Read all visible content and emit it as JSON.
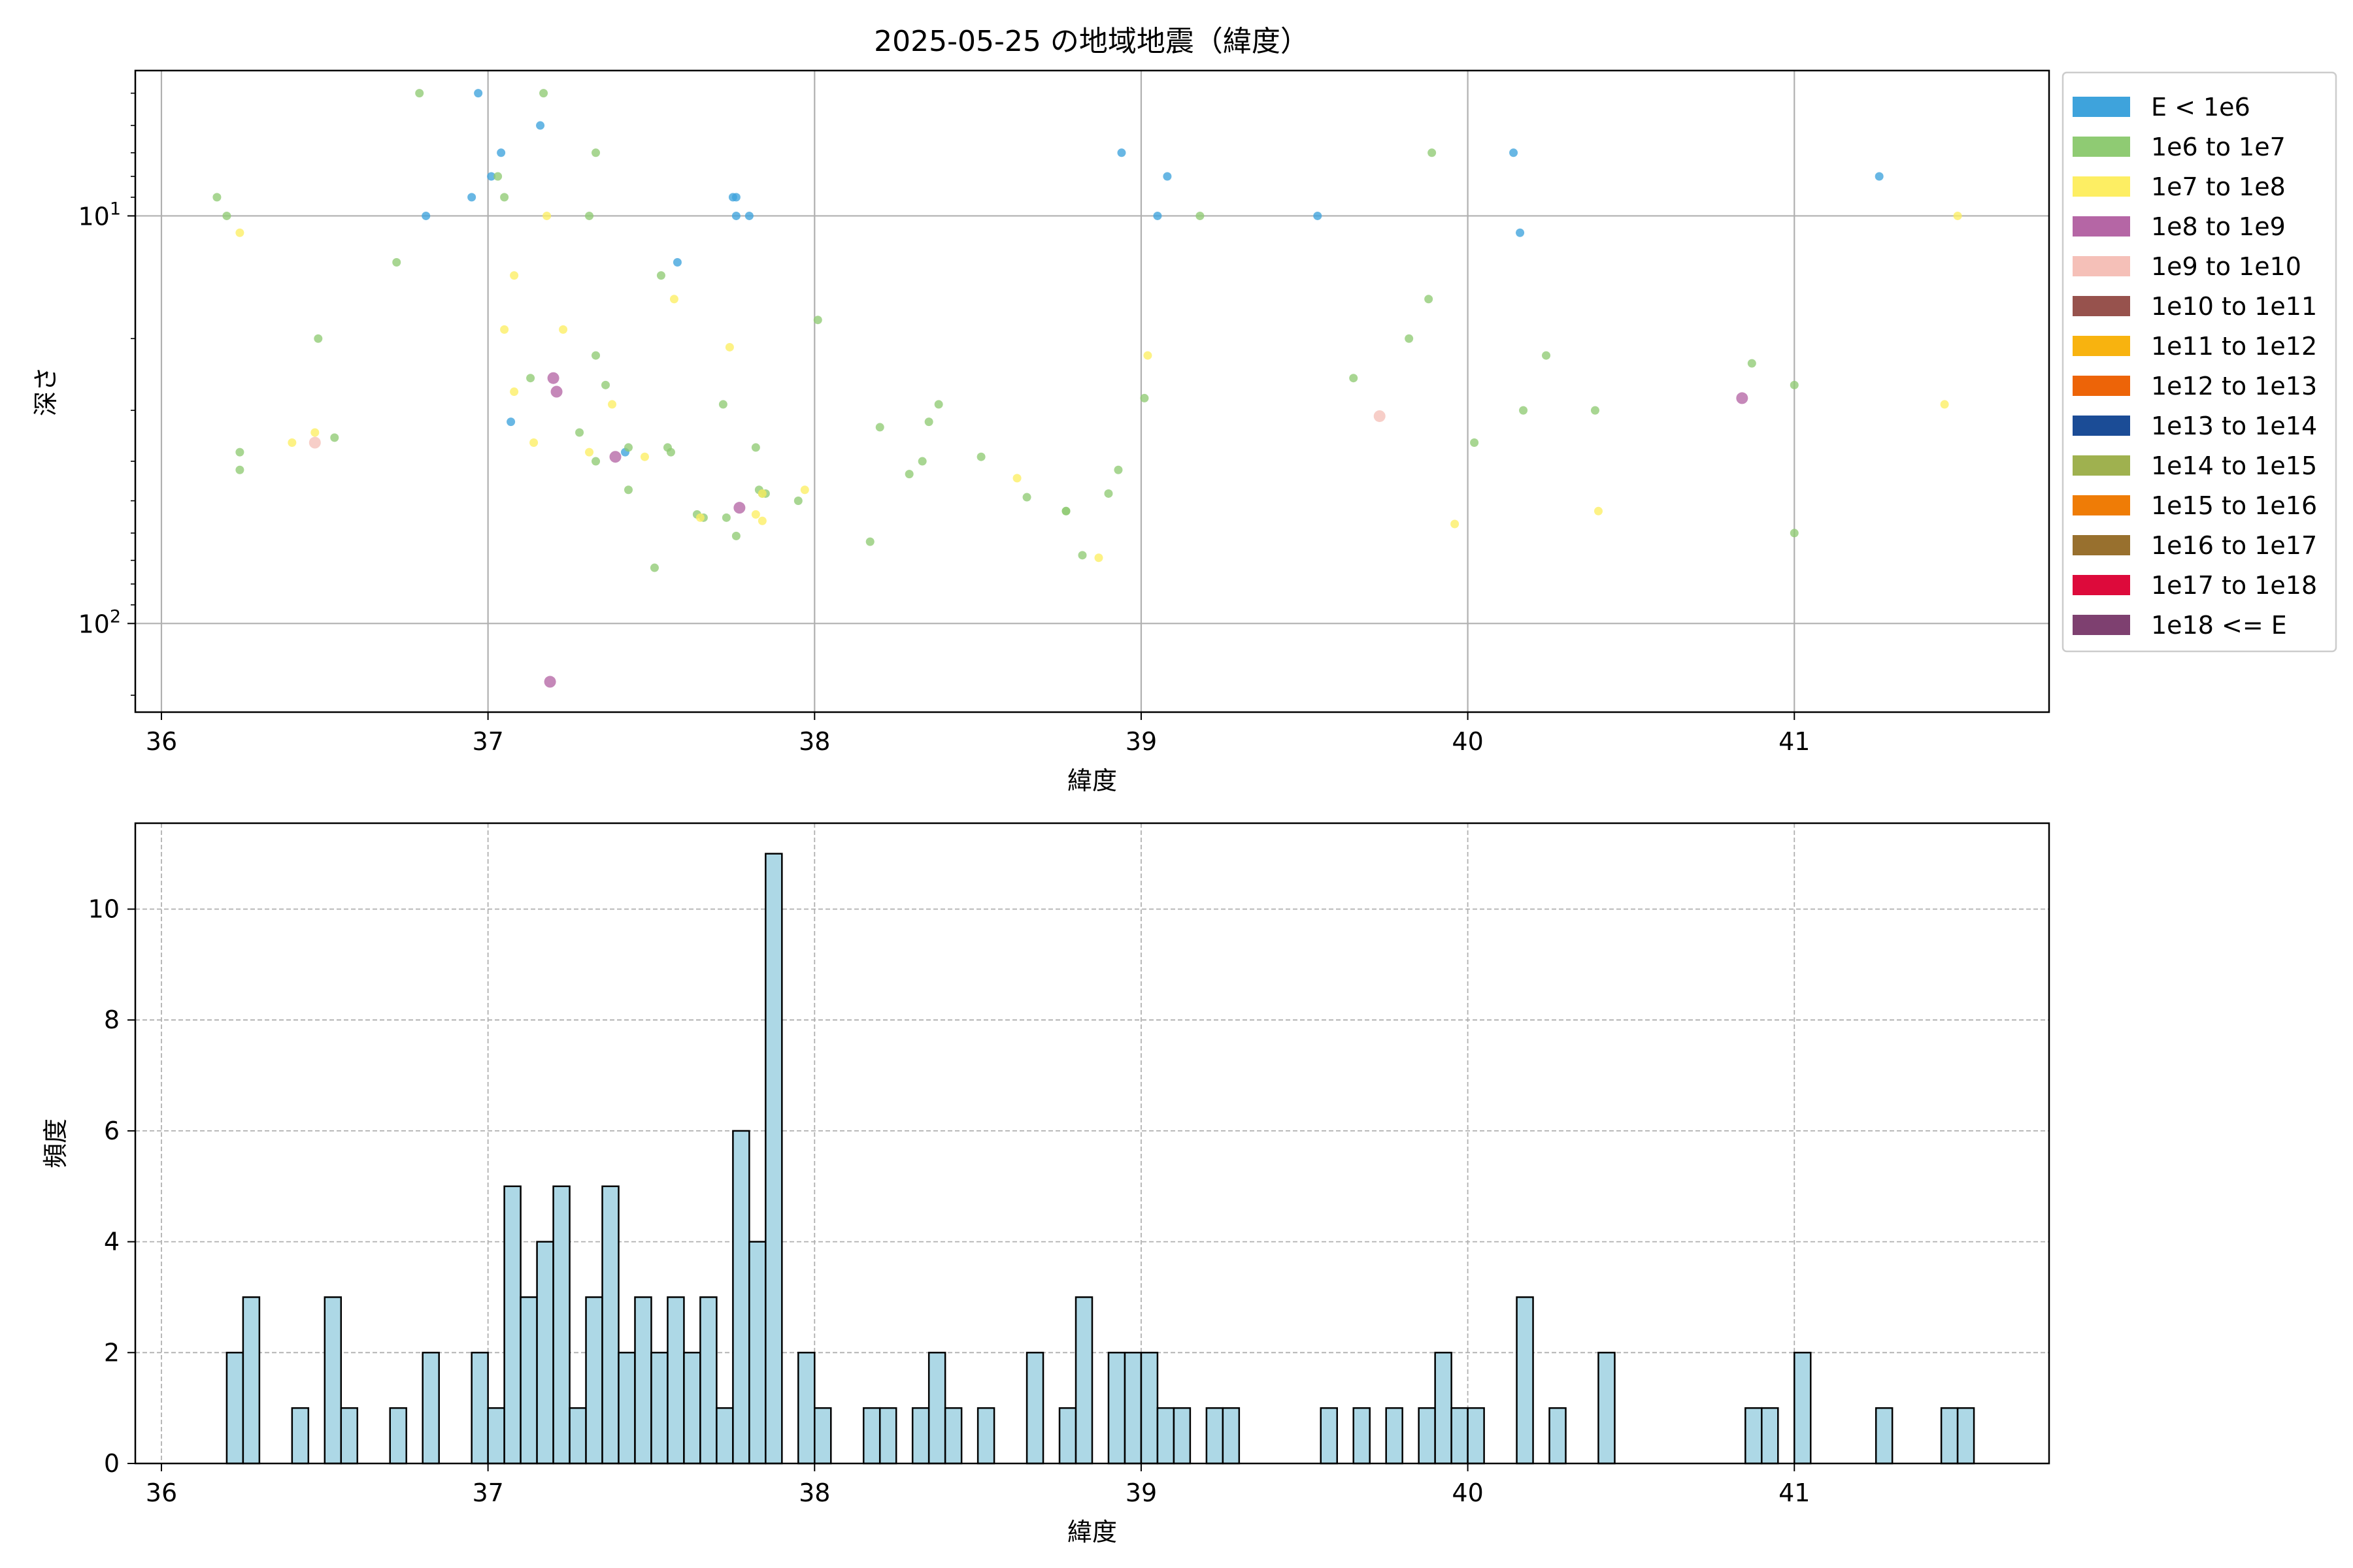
{
  "figure_title": "2025-05-25 の地域地震（緯度）",
  "chart_data": [
    {
      "type": "scatter",
      "title": "2025-05-25 の地域地震（緯度）",
      "xlabel": "緯度",
      "ylabel": "深さ",
      "xlim": [
        35.92,
        41.78
      ],
      "ylim": [
        165,
        4.4
      ],
      "yscale": "log",
      "y_inverted": true,
      "x_ticks": [
        36,
        37,
        38,
        39,
        40,
        41
      ],
      "y_ticks": [
        {
          "value": 10,
          "base": "10",
          "exp": "1"
        },
        {
          "value": 100,
          "base": "10",
          "exp": "2"
        }
      ],
      "grid": true,
      "legend_position": "outside-right",
      "legend": [
        {
          "label": "E < 1e6",
          "color": "#3ea3dc"
        },
        {
          "label": "1e6 to 1e7",
          "color": "#8fcb73"
        },
        {
          "label": "1e7 to 1e8",
          "color": "#fdee63"
        },
        {
          "label": "1e8 to 1e9",
          "color": "#b566a5"
        },
        {
          "label": "1e9 to 1e10",
          "color": "#f5c0b8"
        },
        {
          "label": "1e10 to 1e11",
          "color": "#97524d"
        },
        {
          "label": "1e11 to 1e12",
          "color": "#f8b30f"
        },
        {
          "label": "1e12 to 1e13",
          "color": "#ed6408"
        },
        {
          "label": "1e13 to 1e14",
          "color": "#1b4c96"
        },
        {
          "label": "1e14 to 1e15",
          "color": "#9fb14f"
        },
        {
          "label": "1e15 to 1e16",
          "color": "#ef7c06"
        },
        {
          "label": "1e16 to 1e17",
          "color": "#98702e"
        },
        {
          "label": "1e17 to 1e18",
          "color": "#dd0a3b"
        },
        {
          "label": "1e18 <= E",
          "color": "#7e4070"
        }
      ],
      "points": [
        [
          36.97,
          5,
          0
        ],
        [
          36.95,
          9,
          0
        ],
        [
          36.81,
          10,
          0
        ],
        [
          37.01,
          8,
          0
        ],
        [
          37.04,
          7,
          0
        ],
        [
          37.16,
          6,
          0
        ],
        [
          37.07,
          32,
          0
        ],
        [
          37.42,
          38,
          0
        ],
        [
          37.58,
          13,
          0
        ],
        [
          37.75,
          9,
          0
        ],
        [
          37.76,
          9,
          0
        ],
        [
          37.76,
          10,
          0
        ],
        [
          37.8,
          10,
          0
        ],
        [
          38.94,
          7,
          0
        ],
        [
          39.05,
          10,
          0
        ],
        [
          39.08,
          8,
          0
        ],
        [
          39.54,
          10,
          0
        ],
        [
          40.14,
          7,
          0
        ],
        [
          40.16,
          11,
          0
        ],
        [
          41.26,
          8,
          0
        ],
        [
          36.17,
          9,
          1
        ],
        [
          36.2,
          10,
          1
        ],
        [
          36.24,
          38,
          1
        ],
        [
          36.24,
          42,
          1
        ],
        [
          36.48,
          20,
          1
        ],
        [
          36.53,
          35,
          1
        ],
        [
          36.72,
          13,
          1
        ],
        [
          36.79,
          5,
          1
        ],
        [
          37.03,
          8,
          1
        ],
        [
          37.05,
          9,
          1
        ],
        [
          37.13,
          25,
          1
        ],
        [
          37.17,
          5,
          1
        ],
        [
          37.31,
          10,
          1
        ],
        [
          37.33,
          7,
          1
        ],
        [
          37.33,
          22,
          1
        ],
        [
          37.33,
          40,
          1
        ],
        [
          37.36,
          26,
          1
        ],
        [
          37.28,
          34,
          1
        ],
        [
          37.43,
          37,
          1
        ],
        [
          37.43,
          47,
          1
        ],
        [
          37.53,
          14,
          1
        ],
        [
          37.55,
          37,
          1
        ],
        [
          37.56,
          38,
          1
        ],
        [
          37.51,
          73,
          1
        ],
        [
          37.64,
          54,
          1
        ],
        [
          37.66,
          55,
          1
        ],
        [
          37.72,
          29,
          1
        ],
        [
          37.73,
          55,
          1
        ],
        [
          37.76,
          61,
          1
        ],
        [
          37.82,
          37,
          1
        ],
        [
          37.83,
          47,
          1
        ],
        [
          37.84,
          48,
          1
        ],
        [
          37.85,
          48,
          1
        ],
        [
          37.95,
          50,
          1
        ],
        [
          38.01,
          18,
          1
        ],
        [
          38.17,
          63,
          1
        ],
        [
          38.2,
          33,
          1
        ],
        [
          38.29,
          43,
          1
        ],
        [
          38.33,
          40,
          1
        ],
        [
          38.35,
          32,
          1
        ],
        [
          38.38,
          29,
          1
        ],
        [
          38.51,
          39,
          1
        ],
        [
          38.65,
          49,
          1
        ],
        [
          38.77,
          53,
          1
        ],
        [
          38.77,
          53,
          1
        ],
        [
          38.82,
          68,
          1
        ],
        [
          38.9,
          48,
          1
        ],
        [
          38.93,
          42,
          1
        ],
        [
          39.01,
          28,
          1
        ],
        [
          39.18,
          10,
          1
        ],
        [
          39.65,
          25,
          1
        ],
        [
          39.82,
          20,
          1
        ],
        [
          39.88,
          16,
          1
        ],
        [
          39.89,
          7,
          1
        ],
        [
          40.02,
          36,
          1
        ],
        [
          40.17,
          30,
          1
        ],
        [
          40.24,
          22,
          1
        ],
        [
          40.39,
          30,
          1
        ],
        [
          40.87,
          23,
          1
        ],
        [
          41.0,
          26,
          1
        ],
        [
          41.0,
          60,
          1
        ],
        [
          36.24,
          11,
          2
        ],
        [
          36.4,
          36,
          2
        ],
        [
          36.47,
          34,
          2
        ],
        [
          37.05,
          19,
          2
        ],
        [
          37.08,
          14,
          2
        ],
        [
          37.08,
          27,
          2
        ],
        [
          37.14,
          36,
          2
        ],
        [
          37.18,
          10,
          2
        ],
        [
          37.23,
          19,
          2
        ],
        [
          37.31,
          38,
          2
        ],
        [
          37.38,
          29,
          2
        ],
        [
          37.48,
          39,
          2
        ],
        [
          37.57,
          16,
          2
        ],
        [
          37.65,
          55,
          2
        ],
        [
          37.74,
          21,
          2
        ],
        [
          37.82,
          54,
          2
        ],
        [
          37.84,
          48,
          2
        ],
        [
          37.84,
          56,
          2
        ],
        [
          37.97,
          47,
          2
        ],
        [
          38.62,
          44,
          2
        ],
        [
          38.87,
          69,
          2
        ],
        [
          39.02,
          22,
          2
        ],
        [
          39.96,
          57,
          2
        ],
        [
          40.4,
          53,
          2
        ],
        [
          41.46,
          29,
          2
        ],
        [
          41.5,
          10,
          2
        ],
        [
          37.2,
          25,
          3
        ],
        [
          37.21,
          27,
          3
        ],
        [
          37.39,
          39,
          3
        ],
        [
          37.77,
          52,
          3
        ],
        [
          40.84,
          28,
          3
        ],
        [
          37.19,
          139,
          3
        ],
        [
          36.47,
          36,
          4
        ],
        [
          39.73,
          31,
          4
        ]
      ]
    },
    {
      "type": "bar",
      "title": "",
      "xlabel": "緯度",
      "ylabel": "頻度",
      "xlim": [
        35.92,
        41.78
      ],
      "ylim": [
        0,
        11.55
      ],
      "bin_width": 0.05,
      "x_ticks": [
        36,
        37,
        38,
        39,
        40,
        41
      ],
      "y_ticks": [
        0,
        2,
        4,
        6,
        8,
        10
      ],
      "grid": true,
      "bar_color": "#add8e6",
      "bins": [
        [
          36.2,
          2
        ],
        [
          36.25,
          3
        ],
        [
          36.4,
          1
        ],
        [
          36.5,
          3
        ],
        [
          36.55,
          1
        ],
        [
          36.7,
          1
        ],
        [
          36.8,
          2
        ],
        [
          36.95,
          2
        ],
        [
          37.0,
          1
        ],
        [
          37.05,
          5
        ],
        [
          37.1,
          3
        ],
        [
          37.15,
          4
        ],
        [
          37.2,
          5
        ],
        [
          37.25,
          1
        ],
        [
          37.3,
          3
        ],
        [
          37.35,
          5
        ],
        [
          37.4,
          2
        ],
        [
          37.45,
          3
        ],
        [
          37.5,
          2
        ],
        [
          37.55,
          3
        ],
        [
          37.6,
          2
        ],
        [
          37.65,
          3
        ],
        [
          37.7,
          1
        ],
        [
          37.75,
          6
        ],
        [
          37.8,
          4
        ],
        [
          37.85,
          11
        ],
        [
          37.95,
          2
        ],
        [
          38.0,
          1
        ],
        [
          38.15,
          1
        ],
        [
          38.2,
          1
        ],
        [
          38.3,
          1
        ],
        [
          38.35,
          2
        ],
        [
          38.4,
          1
        ],
        [
          38.5,
          1
        ],
        [
          38.65,
          2
        ],
        [
          38.75,
          1
        ],
        [
          38.8,
          3
        ],
        [
          38.9,
          2
        ],
        [
          38.95,
          2
        ],
        [
          39.0,
          2
        ],
        [
          39.05,
          1
        ],
        [
          39.1,
          1
        ],
        [
          39.2,
          1
        ],
        [
          39.25,
          1
        ],
        [
          39.55,
          1
        ],
        [
          39.65,
          1
        ],
        [
          39.75,
          1
        ],
        [
          39.85,
          1
        ],
        [
          39.9,
          2
        ],
        [
          39.95,
          1
        ],
        [
          40.0,
          1
        ],
        [
          40.15,
          3
        ],
        [
          40.25,
          1
        ],
        [
          40.4,
          2
        ],
        [
          40.85,
          1
        ],
        [
          40.9,
          1
        ],
        [
          41.0,
          2
        ],
        [
          41.25,
          1
        ],
        [
          41.45,
          1
        ],
        [
          41.5,
          1
        ]
      ]
    }
  ]
}
